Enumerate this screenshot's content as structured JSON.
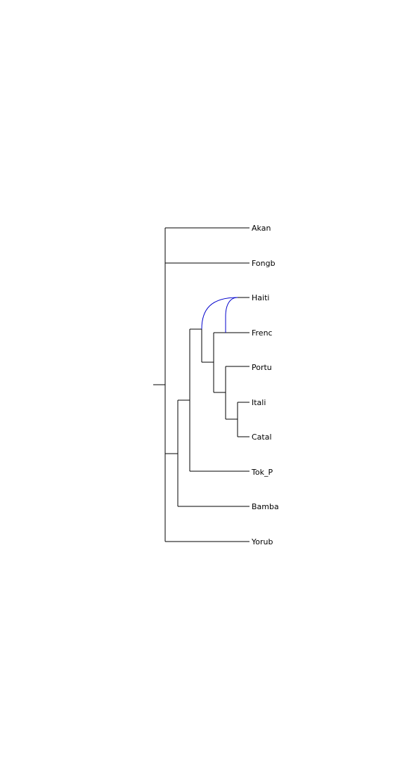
{
  "tree": {
    "taxa": [
      "Akan",
      "Fongb",
      "Haiti",
      "Frenc",
      "Portu",
      "Itali",
      "Catal",
      "Tok_P",
      "Bamba",
      "Yorub"
    ],
    "branch_color": "#000000",
    "reticulation_color": "#0000cc",
    "reticulations": [
      {
        "from": "Haiti",
        "to_clade": [
          "Haiti",
          "Frenc",
          "Portu",
          "Itali",
          "Catal"
        ]
      },
      {
        "from": "Haiti",
        "to_clade": [
          "Frenc",
          "Portu",
          "Itali",
          "Catal"
        ]
      }
    ]
  }
}
